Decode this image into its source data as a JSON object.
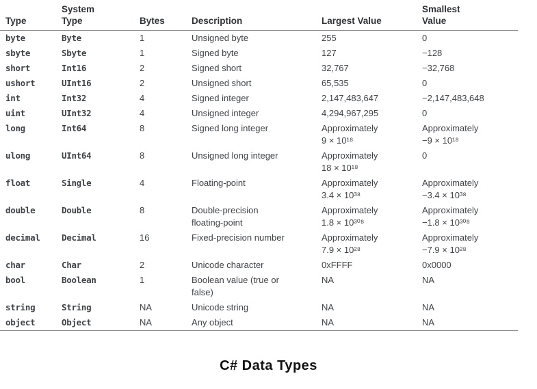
{
  "caption": "C# Data Types",
  "colors": {
    "body_text": "#3f4347",
    "header_text": "#2f3337",
    "rule": "#8f8f8f",
    "caption_text": "#111111",
    "background": "#ffffff"
  },
  "table": {
    "headers": {
      "type": "Type",
      "system_type": "System\nType",
      "bytes": "Bytes",
      "description": "Description",
      "largest": "Largest Value",
      "smallest": "Smallest\nValue"
    },
    "rows": [
      {
        "type": "byte",
        "system": "Byte",
        "bytes": "1",
        "description": "Unsigned byte",
        "largest": "255",
        "smallest": "0"
      },
      {
        "type": "sbyte",
        "system": "Sbyte",
        "bytes": "1",
        "description": "Signed byte",
        "largest": "127",
        "smallest": "−128"
      },
      {
        "type": "short",
        "system": "Int16",
        "bytes": "2",
        "description": "Signed short",
        "largest": "32,767",
        "smallest": "−32,768"
      },
      {
        "type": "ushort",
        "system": "UInt16",
        "bytes": "2",
        "description": "Unsigned short",
        "largest": "65,535",
        "smallest": "0"
      },
      {
        "type": "int",
        "system": "Int32",
        "bytes": "4",
        "description": "Signed integer",
        "largest": "2,147,483,647",
        "smallest": "−2,147,483,648"
      },
      {
        "type": "uint",
        "system": "UInt32",
        "bytes": "4",
        "description": "Unsigned integer",
        "largest": "4,294,967,295",
        "smallest": "0"
      },
      {
        "type": "long",
        "system": "Int64",
        "bytes": "8",
        "description": "Signed long integer",
        "largest": "Approximately\n9 × 10¹⁸",
        "smallest": "Approximately\n−9 × 10¹⁸"
      },
      {
        "type": "ulong",
        "system": "UInt64",
        "bytes": "8",
        "description": "Unsigned long integer",
        "largest": "Approximately\n18 × 10¹⁸",
        "smallest": "0"
      },
      {
        "type": "float",
        "system": "Single",
        "bytes": "4",
        "description": "Floating-point",
        "largest": "Approximately\n3.4 × 10³⁸",
        "smallest": "Approximately\n−3.4 × 10³⁸"
      },
      {
        "type": "double",
        "system": "Double",
        "bytes": "8",
        "description": "Double-precision\nfloating-point",
        "largest": "Approximately\n1.8 × 10³⁰⁸",
        "smallest": "Approximately\n−1.8 × 10³⁰⁸"
      },
      {
        "type": "decimal",
        "system": "Decimal",
        "bytes": "16",
        "description": "Fixed-precision number",
        "largest": "Approximately\n7.9 × 10²⁸",
        "smallest": "Approximately\n−7.9 × 10²⁸"
      },
      {
        "type": "char",
        "system": "Char",
        "bytes": "2",
        "description": "Unicode character",
        "largest": "0xFFFF",
        "smallest": "0x0000"
      },
      {
        "type": "bool",
        "system": "Boolean",
        "bytes": "1",
        "description": "Boolean value (true or\nfalse)",
        "largest": "NA",
        "smallest": "NA"
      },
      {
        "type": "string",
        "system": "String",
        "bytes": "NA",
        "description": "Unicode string",
        "largest": "NA",
        "smallest": "NA"
      },
      {
        "type": "object",
        "system": "Object",
        "bytes": "NA",
        "description": "Any object",
        "largest": "NA",
        "smallest": "NA"
      }
    ]
  }
}
